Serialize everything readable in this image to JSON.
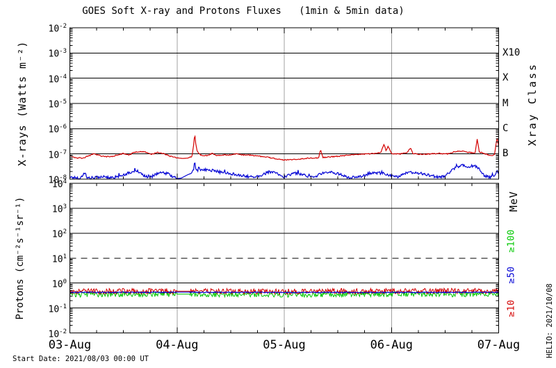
{
  "header": {
    "title": "GOES Soft X-ray and Protons Fluxes   (1min & 5min data)"
  },
  "footer": {
    "start_date": "Start Date: 2021/08/03 00:00 UT",
    "credit": "HELIO: 2021/10/08"
  },
  "colors": {
    "red": "#d40000",
    "blue": "#0000d4",
    "green": "#00c800",
    "grid": "#000000",
    "day_line": "#a0a0a0",
    "background": "#ffffff"
  },
  "xaxis": {
    "tick_labels": [
      "03-Aug",
      "04-Aug",
      "05-Aug",
      "06-Aug",
      "07-Aug"
    ],
    "range_days": [
      0,
      4
    ],
    "minor_ticks_per_day": 4
  },
  "chart_data": [
    {
      "type": "line",
      "title": "GOES Soft X-ray and Protons Fluxes   (1min & 5min data)",
      "ylabel": "X-rays (Watts m⁻²)",
      "right_axis_label": "Xray Class",
      "ylim": [
        1e-08,
        0.01
      ],
      "ytick_exponents": [
        -2,
        -3,
        -4,
        -5,
        -6,
        -7,
        -8
      ],
      "xray_class_ticks": [
        {
          "label": "X10",
          "flux": 0.001
        },
        {
          "label": "X",
          "flux": 0.0001
        },
        {
          "label": "M",
          "flux": 1e-05
        },
        {
          "label": "C",
          "flux": 1e-06
        },
        {
          "label": "B",
          "flux": 1e-07
        }
      ],
      "grid": {
        "h_solid_exponents": [
          -3,
          -4,
          -5,
          -6,
          -7
        ],
        "v_day_lines": [
          1,
          2,
          3
        ]
      },
      "data_gap_days": [
        [
          1.0,
          1.12
        ]
      ],
      "series": [
        {
          "name": "xray-blue-channel",
          "color": "#0000d4",
          "noise_log": 0.055,
          "spiky": true,
          "width": 1.2,
          "points": [
            [
              0,
              1.2e-08
            ],
            [
              0.1,
              1.1e-08
            ],
            [
              0.14,
              1.9e-08
            ],
            [
              0.16,
              1.1e-08
            ],
            [
              0.25,
              1.15e-08
            ],
            [
              0.3,
              1.3e-08
            ],
            [
              0.35,
              1.15e-08
            ],
            [
              0.42,
              1.2e-08
            ],
            [
              0.5,
              1.5e-08
            ],
            [
              0.56,
              1.8e-08
            ],
            [
              0.6,
              2.1e-08
            ],
            [
              0.65,
              1.7e-08
            ],
            [
              0.7,
              1.3e-08
            ],
            [
              0.76,
              1.2e-08
            ],
            [
              0.8,
              1.6e-08
            ],
            [
              0.86,
              1.8e-08
            ],
            [
              0.92,
              1.6e-08
            ],
            [
              0.97,
              1.2e-08
            ],
            [
              1.0,
              1.05e-08
            ],
            [
              1.04,
              1.1e-08
            ],
            [
              1.1,
              1.5e-08
            ],
            [
              1.13,
              1.7e-08
            ],
            [
              1.155,
              2.5e-08
            ],
            [
              1.165,
              4.8e-08
            ],
            [
              1.18,
              2.2e-08
            ],
            [
              1.22,
              2.4e-08
            ],
            [
              1.28,
              2.3e-08
            ],
            [
              1.34,
              2.2e-08
            ],
            [
              1.4,
              1.9e-08
            ],
            [
              1.48,
              1.7e-08
            ],
            [
              1.56,
              1.5e-08
            ],
            [
              1.64,
              1.3e-08
            ],
            [
              1.72,
              1.2e-08
            ],
            [
              1.78,
              1.4e-08
            ],
            [
              1.84,
              1.8e-08
            ],
            [
              1.9,
              1.9e-08
            ],
            [
              1.96,
              1.4e-08
            ],
            [
              2.0,
              1.2e-08
            ],
            [
              2.05,
              1.5e-08
            ],
            [
              2.1,
              1.7e-08
            ],
            [
              2.16,
              1.6e-08
            ],
            [
              2.22,
              1.3e-08
            ],
            [
              2.28,
              1.2e-08
            ],
            [
              2.35,
              1.7e-08
            ],
            [
              2.42,
              1.9e-08
            ],
            [
              2.5,
              1.7e-08
            ],
            [
              2.56,
              1.3e-08
            ],
            [
              2.62,
              1.15e-08
            ],
            [
              2.7,
              1.2e-08
            ],
            [
              2.78,
              1.6e-08
            ],
            [
              2.84,
              1.8e-08
            ],
            [
              2.92,
              1.7e-08
            ],
            [
              3.0,
              1.4e-08
            ],
            [
              3.05,
              1.2e-08
            ],
            [
              3.1,
              1.6e-08
            ],
            [
              3.18,
              1.8e-08
            ],
            [
              3.26,
              1.7e-08
            ],
            [
              3.34,
              1.5e-08
            ],
            [
              3.42,
              1.2e-08
            ],
            [
              3.5,
              1.3e-08
            ],
            [
              3.56,
              2.2e-08
            ],
            [
              3.62,
              3.2e-08
            ],
            [
              3.68,
              3.6e-08
            ],
            [
              3.72,
              3e-08
            ],
            [
              3.76,
              3.4e-08
            ],
            [
              3.8,
              3e-08
            ],
            [
              3.84,
              2e-08
            ],
            [
              3.87,
              1.3e-08
            ],
            [
              3.92,
              1.2e-08
            ],
            [
              3.96,
              1.3e-08
            ],
            [
              3.99,
              2.2e-08
            ],
            [
              4.0,
              1.6e-08
            ]
          ]
        },
        {
          "name": "xray-red-channel",
          "color": "#d40000",
          "noise_log": 0.02,
          "spiky": false,
          "width": 1.2,
          "points": [
            [
              0,
              8.5e-08
            ],
            [
              0.06,
              7e-08
            ],
            [
              0.12,
              6.8e-08
            ],
            [
              0.18,
              8.5e-08
            ],
            [
              0.22,
              1e-07
            ],
            [
              0.26,
              9e-08
            ],
            [
              0.32,
              7.8e-08
            ],
            [
              0.4,
              8e-08
            ],
            [
              0.46,
              9.5e-08
            ],
            [
              0.5,
              1.05e-07
            ],
            [
              0.55,
              9e-08
            ],
            [
              0.6,
              1.15e-07
            ],
            [
              0.66,
              1.25e-07
            ],
            [
              0.72,
              1.15e-07
            ],
            [
              0.76,
              9.5e-08
            ],
            [
              0.82,
              1.15e-07
            ],
            [
              0.88,
              1e-07
            ],
            [
              0.94,
              8e-08
            ],
            [
              1.0,
              7e-08
            ],
            [
              1.05,
              6.6e-08
            ],
            [
              1.1,
              6.8e-08
            ],
            [
              1.14,
              8e-08
            ],
            [
              1.155,
              2.2e-07
            ],
            [
              1.165,
              6.5e-07
            ],
            [
              1.175,
              2.5e-07
            ],
            [
              1.19,
              1.2e-07
            ],
            [
              1.22,
              9e-08
            ],
            [
              1.28,
              8.5e-08
            ],
            [
              1.33,
              1.05e-07
            ],
            [
              1.36,
              8.8e-08
            ],
            [
              1.42,
              9e-08
            ],
            [
              1.5,
              9.2e-08
            ],
            [
              1.55,
              1e-07
            ],
            [
              1.62,
              9e-08
            ],
            [
              1.7,
              8.8e-08
            ],
            [
              1.78,
              8e-08
            ],
            [
              1.86,
              7.2e-08
            ],
            [
              1.94,
              6.2e-08
            ],
            [
              2.0,
              5.8e-08
            ],
            [
              2.08,
              6e-08
            ],
            [
              2.16,
              6.4e-08
            ],
            [
              2.24,
              6.8e-08
            ],
            [
              2.32,
              7e-08
            ],
            [
              2.34,
              1.5e-07
            ],
            [
              2.36,
              7.2e-08
            ],
            [
              2.44,
              7.8e-08
            ],
            [
              2.52,
              8.2e-08
            ],
            [
              2.6,
              9e-08
            ],
            [
              2.68,
              9.5e-08
            ],
            [
              2.76,
              1e-07
            ],
            [
              2.84,
              1.05e-07
            ],
            [
              2.9,
              1.1e-07
            ],
            [
              2.93,
              2.4e-07
            ],
            [
              2.95,
              1.3e-07
            ],
            [
              2.97,
              2e-07
            ],
            [
              3.0,
              1.05e-07
            ],
            [
              3.08,
              1e-07
            ],
            [
              3.14,
              1.1e-07
            ],
            [
              3.18,
              1.7e-07
            ],
            [
              3.2,
              1.05e-07
            ],
            [
              3.28,
              9.5e-08
            ],
            [
              3.36,
              1e-07
            ],
            [
              3.44,
              1.05e-07
            ],
            [
              3.52,
              1e-07
            ],
            [
              3.6,
              1.25e-07
            ],
            [
              3.66,
              1.3e-07
            ],
            [
              3.72,
              1.15e-07
            ],
            [
              3.78,
              1.1e-07
            ],
            [
              3.8,
              3.8e-07
            ],
            [
              3.82,
              1.2e-07
            ],
            [
              3.88,
              1e-07
            ],
            [
              3.93,
              8.5e-08
            ],
            [
              3.96,
              9e-08
            ],
            [
              3.985,
              4.5e-07
            ],
            [
              4.0,
              2e-07
            ]
          ]
        }
      ]
    },
    {
      "type": "line",
      "ylabel": "Protons (cm⁻²s⁻¹sr⁻¹)",
      "right_axis_label": "MeV",
      "ylim": [
        0.01,
        10000.0
      ],
      "ytick_exponents": [
        4,
        3,
        2,
        1,
        0,
        -1,
        -2
      ],
      "threshold_line": {
        "flux": 10,
        "style": "dashed"
      },
      "energy_labels": [
        {
          "label": "≥100",
          "color": "#00c800"
        },
        {
          "label": "≥50",
          "color": "#0000d4"
        },
        {
          "label": "≥10",
          "color": "#d40000"
        }
      ],
      "grid": {
        "h_solid_exponents": [
          3,
          2,
          0,
          -1
        ],
        "h_dashed_exponents": [
          1
        ],
        "v_day_lines": [
          1,
          2,
          3
        ]
      },
      "data_gap_days": [
        [
          1.0,
          1.12
        ]
      ],
      "series": [
        {
          "name": "protons-ge100MeV",
          "color": "#00c800",
          "noise_log": 0.11,
          "spiky": false,
          "width": 1,
          "points": [
            [
              0,
              0.35
            ],
            [
              1.0,
              0.36
            ],
            [
              1.12,
              0.36
            ],
            [
              2.0,
              0.35
            ],
            [
              3.0,
              0.36
            ],
            [
              4.0,
              0.36
            ]
          ]
        },
        {
          "name": "protons-ge10MeV",
          "color": "#d40000",
          "noise_log": 0.11,
          "spiky": false,
          "width": 1,
          "points": [
            [
              0,
              0.46
            ],
            [
              0.5,
              0.48
            ],
            [
              1.0,
              0.47
            ],
            [
              1.12,
              0.47
            ],
            [
              2.0,
              0.46
            ],
            [
              2.5,
              0.47
            ],
            [
              3.0,
              0.47
            ],
            [
              3.5,
              0.48
            ],
            [
              4.0,
              0.48
            ]
          ]
        },
        {
          "name": "protons-ge50MeV",
          "color": "#0000d4",
          "noise_log": 0.02,
          "spiky": false,
          "width": 1.2,
          "points": [
            [
              0,
              0.42
            ],
            [
              1.0,
              0.43
            ],
            [
              1.12,
              0.43
            ],
            [
              2.0,
              0.42
            ],
            [
              3.0,
              0.42
            ],
            [
              4.0,
              0.43
            ]
          ]
        }
      ]
    }
  ]
}
